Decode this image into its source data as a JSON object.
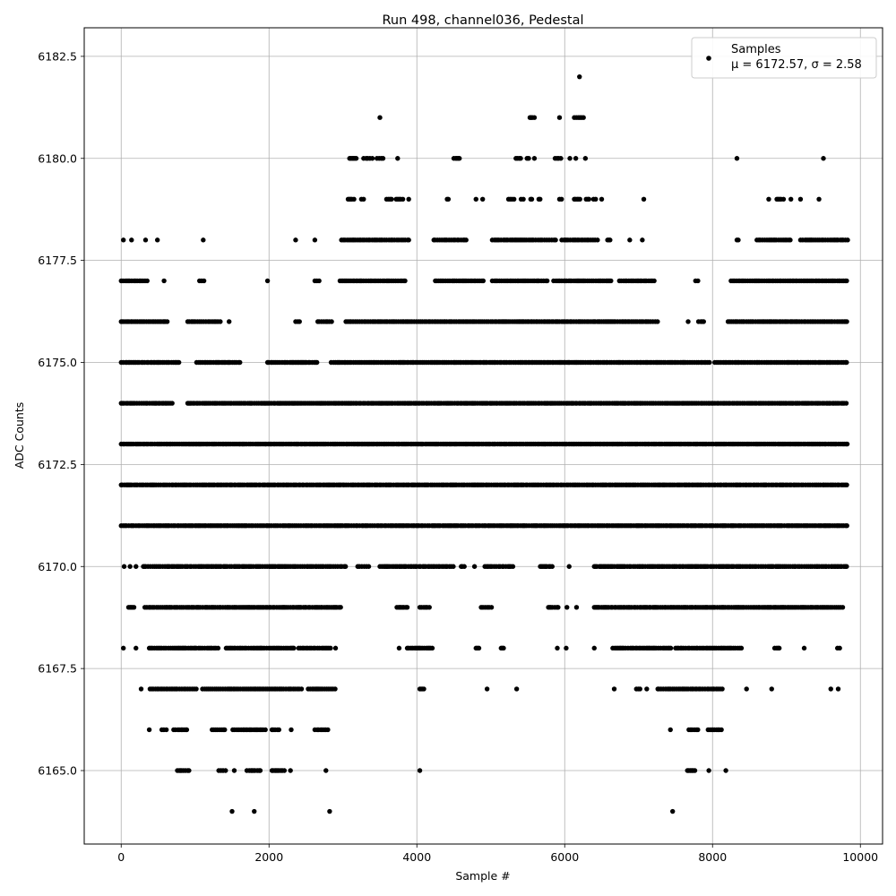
{
  "chart_data": {
    "type": "scatter",
    "title": "Run 498, channel036, Pedestal",
    "xlabel": "Sample #",
    "ylabel": "ADC Counts",
    "xlim": [
      -500,
      10300
    ],
    "ylim": [
      6163.2,
      6183.2
    ],
    "x_ticks": [
      0,
      2000,
      4000,
      6000,
      8000,
      10000
    ],
    "x_tick_labels": [
      "0",
      "2000",
      "4000",
      "6000",
      "8000",
      "10000"
    ],
    "y_ticks": [
      6165.0,
      6167.5,
      6170.0,
      6172.5,
      6175.0,
      6177.5,
      6180.0,
      6182.5
    ],
    "y_tick_labels": [
      "6165.0",
      "6167.5",
      "6170.0",
      "6172.5",
      "6175.0",
      "6177.5",
      "6180.0",
      "6182.5"
    ],
    "grid": true,
    "legend_position": "top-right",
    "marker_color": "#000000",
    "series": [
      {
        "name": "Samples",
        "legend_stats": "μ = 6172.57, σ = 2.58",
        "level_ranges": [
          {
            "y": 6182,
            "ranges": [
              [
                6200,
                6200
              ]
            ]
          },
          {
            "y": 6181,
            "ranges": [
              [
                3500,
                3500
              ],
              [
                5530,
                5600
              ],
              [
                5930,
                5930
              ],
              [
                6130,
                6270
              ]
            ]
          },
          {
            "y": 6180,
            "ranges": [
              [
                3090,
                3200
              ],
              [
                3280,
                3400
              ],
              [
                3460,
                3570
              ],
              [
                3740,
                3740
              ],
              [
                4500,
                4600
              ],
              [
                5340,
                5420
              ],
              [
                5490,
                5520
              ],
              [
                5590,
                5600
              ],
              [
                5870,
                5960
              ],
              [
                6070,
                6080
              ],
              [
                6150,
                6160
              ],
              [
                6280,
                6280
              ],
              [
                8330,
                8330
              ],
              [
                9500,
                9520
              ]
            ]
          },
          {
            "y": 6179,
            "ranges": [
              [
                3070,
                3150
              ],
              [
                3250,
                3290
              ],
              [
                3590,
                3680
              ],
              [
                3720,
                3830
              ],
              [
                3890,
                3890
              ],
              [
                4410,
                4440
              ],
              [
                4800,
                4820
              ],
              [
                4890,
                4900
              ],
              [
                5240,
                5320
              ],
              [
                5410,
                5450
              ],
              [
                5540,
                5570
              ],
              [
                5650,
                5690
              ],
              [
                5930,
                5960
              ],
              [
                6130,
                6220
              ],
              [
                6290,
                6330
              ],
              [
                6390,
                6420
              ],
              [
                6500,
                6500
              ],
              [
                7070,
                7070
              ],
              [
                8760,
                8760
              ],
              [
                8870,
                8960
              ],
              [
                9060,
                9070
              ],
              [
                9190,
                9190
              ],
              [
                9440,
                9440
              ]
            ]
          },
          {
            "y": 6178,
            "ranges": [
              [
                30,
                30
              ],
              [
                140,
                160
              ],
              [
                330,
                330
              ],
              [
                490,
                490
              ],
              [
                1110,
                1110
              ],
              [
                2360,
                2360
              ],
              [
                2620,
                2620
              ],
              [
                2980,
                3900
              ],
              [
                4230,
                4670
              ],
              [
                5020,
                5880
              ],
              [
                5960,
                6450
              ],
              [
                6580,
                6640
              ],
              [
                6880,
                6900
              ],
              [
                7050,
                7050
              ],
              [
                8330,
                8350
              ],
              [
                8600,
                9060
              ],
              [
                9190,
                9830
              ]
            ]
          },
          {
            "y": 6177,
            "ranges": [
              [
                0,
                360
              ],
              [
                580,
                580
              ],
              [
                1060,
                1120
              ],
              [
                1980,
                1980
              ],
              [
                2620,
                2700
              ],
              [
                2960,
                3860
              ],
              [
                4250,
                4910
              ],
              [
                5020,
                5770
              ],
              [
                5850,
                6640
              ],
              [
                6740,
                7240
              ],
              [
                7770,
                7830
              ],
              [
                8250,
                9830
              ]
            ]
          },
          {
            "y": 6176,
            "ranges": [
              [
                0,
                630
              ],
              [
                900,
                1370
              ],
              [
                1460,
                1460
              ],
              [
                2360,
                2420
              ],
              [
                2660,
                2860
              ],
              [
                3040,
                7270
              ],
              [
                7670,
                7700
              ],
              [
                7810,
                7880
              ],
              [
                8210,
                9830
              ]
            ]
          },
          {
            "y": 6175,
            "ranges": [
              [
                0,
                800
              ],
              [
                1020,
                1610
              ],
              [
                1980,
                2650
              ],
              [
                2840,
                7960
              ],
              [
                8030,
                9830
              ]
            ]
          },
          {
            "y": 6174,
            "ranges": [
              [
                0,
                710
              ],
              [
                900,
                9830
              ]
            ]
          },
          {
            "y": 6173,
            "ranges": [
              [
                0,
                9830
              ]
            ]
          },
          {
            "y": 6172,
            "ranges": [
              [
                0,
                9830
              ]
            ]
          },
          {
            "y": 6171,
            "ranges": [
              [
                0,
                9830
              ]
            ]
          },
          {
            "y": 6170,
            "ranges": [
              [
                40,
                40
              ],
              [
                120,
                120
              ],
              [
                200,
                200
              ],
              [
                300,
                3040
              ],
              [
                3200,
                3350
              ],
              [
                3500,
                4500
              ],
              [
                4600,
                4650
              ],
              [
                4780,
                4800
              ],
              [
                4920,
                5300
              ],
              [
                5670,
                5840
              ],
              [
                6060,
                6060
              ],
              [
                6400,
                9830
              ]
            ]
          },
          {
            "y": 6169,
            "ranges": [
              [
                100,
                180
              ],
              [
                320,
                3000
              ],
              [
                3730,
                3890
              ],
              [
                4040,
                4180
              ],
              [
                4870,
                5020
              ],
              [
                5780,
                5920
              ],
              [
                6030,
                6040
              ],
              [
                6160,
                6160
              ],
              [
                6400,
                9780
              ]
            ]
          },
          {
            "y": 6168,
            "ranges": [
              [
                30,
                30
              ],
              [
                200,
                200
              ],
              [
                380,
                1320
              ],
              [
                1420,
                2340
              ],
              [
                2400,
                2840
              ],
              [
                2900,
                2900
              ],
              [
                3760,
                3760
              ],
              [
                3870,
                4220
              ],
              [
                4800,
                4860
              ],
              [
                5140,
                5180
              ],
              [
                5900,
                5900
              ],
              [
                6020,
                6020
              ],
              [
                6400,
                6400
              ],
              [
                6650,
                7450
              ],
              [
                7500,
                8400
              ],
              [
                8840,
                8920
              ],
              [
                9240,
                9240
              ],
              [
                9690,
                9740
              ]
            ]
          },
          {
            "y": 6167,
            "ranges": [
              [
                270,
                280
              ],
              [
                390,
                1040
              ],
              [
                1100,
                2440
              ],
              [
                2530,
                2900
              ],
              [
                4040,
                4100
              ],
              [
                4950,
                4960
              ],
              [
                5350,
                5350
              ],
              [
                6670,
                6670
              ],
              [
                6970,
                7040
              ],
              [
                7110,
                7120
              ],
              [
                7260,
                8160
              ],
              [
                8460,
                8460
              ],
              [
                8800,
                8800
              ],
              [
                9600,
                9600
              ],
              [
                9700,
                9700
              ]
            ]
          },
          {
            "y": 6166,
            "ranges": [
              [
                380,
                380
              ],
              [
                550,
                640
              ],
              [
                710,
                900
              ],
              [
                1230,
                1420
              ],
              [
                1510,
                1960
              ],
              [
                2040,
                2150
              ],
              [
                2300,
                2300
              ],
              [
                2620,
                2820
              ],
              [
                7430,
                7430
              ],
              [
                7680,
                7830
              ],
              [
                7940,
                8120
              ]
            ]
          },
          {
            "y": 6165,
            "ranges": [
              [
                760,
                920
              ],
              [
                1320,
                1420
              ],
              [
                1530,
                1530
              ],
              [
                1700,
                1900
              ],
              [
                2040,
                2220
              ],
              [
                2290,
                2290
              ],
              [
                2770,
                2770
              ],
              [
                4040,
                4040
              ],
              [
                7660,
                7780
              ],
              [
                7950,
                7950
              ],
              [
                8180,
                8180
              ]
            ]
          },
          {
            "y": 6164,
            "ranges": [
              [
                1500,
                1500
              ],
              [
                1800,
                1800
              ],
              [
                2820,
                2820
              ],
              [
                7460,
                7460
              ]
            ]
          }
        ]
      }
    ]
  }
}
